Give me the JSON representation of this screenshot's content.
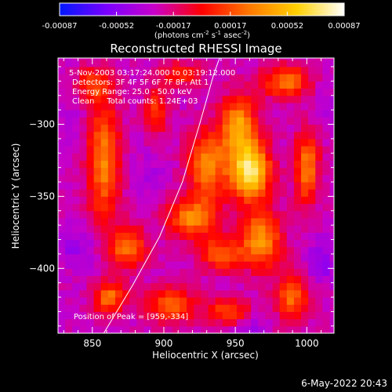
{
  "chart_data": {
    "type": "heatmap",
    "title": "Reconstructed RHESSI Image",
    "xlabel": "Heliocentric X (arcsec)",
    "ylabel": "Heliocentric Y (arcsec)",
    "xlim": [
      826,
      1019
    ],
    "ylim": [
      -445,
      -254
    ],
    "x_ticks": [
      850,
      900,
      950,
      1000
    ],
    "y_ticks": [
      -300,
      -350,
      -400
    ],
    "colorbar": {
      "range": [
        -0.00087,
        0.00087
      ],
      "ticks": [
        "-0.00087",
        "-0.00052",
        "-0.00017",
        "0.00017",
        "0.00052",
        "0.00087"
      ],
      "unit_prefix": "(photons cm",
      "unit_exp1": "-2",
      "unit_mid": " s",
      "unit_exp2": "-1",
      "unit_mid2": " asec",
      "unit_exp3": "-2",
      "unit_suffix": ")",
      "colormap": [
        "#0018ff",
        "#7a00ff",
        "#c800c8",
        "#ff0000",
        "#ff7800",
        "#ffd000",
        "#ffffff"
      ]
    },
    "annotations": [
      "5-Nov-2003 03:17:24.000 to 03:19:12.000",
      "Detectors: 3F 4F 5F 6F 7F 8F, Att 1",
      "Energy Range: 25.0 - 50.0 keV",
      "Clean     Total counts: 1.24E+03"
    ],
    "peak_label": "Position of Peak = [959,-334]",
    "peak": [
      959,
      -334
    ],
    "limb_line": [
      [
        858,
        -445
      ],
      [
        878,
        -412
      ],
      [
        897,
        -378
      ],
      [
        913,
        -340
      ],
      [
        925,
        -300
      ],
      [
        935,
        -265
      ],
      [
        939,
        -254
      ]
    ],
    "blobs": [
      {
        "x": 960,
        "y": -332,
        "sx": 10,
        "sy": 14,
        "v": 1.0
      },
      {
        "x": 952,
        "y": -300,
        "sx": 9,
        "sy": 14,
        "v": 0.62
      },
      {
        "x": 930,
        "y": -328,
        "sx": 9,
        "sy": 16,
        "v": 0.58
      },
      {
        "x": 920,
        "y": -365,
        "sx": 12,
        "sy": 10,
        "v": 0.55
      },
      {
        "x": 968,
        "y": -380,
        "sx": 10,
        "sy": 14,
        "v": 0.62
      },
      {
        "x": 940,
        "y": -390,
        "sx": 10,
        "sy": 8,
        "v": 0.45
      },
      {
        "x": 1000,
        "y": -330,
        "sx": 6,
        "sy": 18,
        "v": 0.52
      },
      {
        "x": 985,
        "y": -270,
        "sx": 12,
        "sy": 8,
        "v": 0.48
      },
      {
        "x": 858,
        "y": -325,
        "sx": 8,
        "sy": 30,
        "v": 0.55
      },
      {
        "x": 875,
        "y": -385,
        "sx": 9,
        "sy": 10,
        "v": 0.5
      },
      {
        "x": 862,
        "y": -420,
        "sx": 8,
        "sy": 8,
        "v": 0.48
      },
      {
        "x": 905,
        "y": -425,
        "sx": 12,
        "sy": 8,
        "v": 0.48
      },
      {
        "x": 945,
        "y": -430,
        "sx": 10,
        "sy": 6,
        "v": 0.4
      },
      {
        "x": 990,
        "y": -420,
        "sx": 8,
        "sy": 12,
        "v": 0.45
      },
      {
        "x": 895,
        "y": -290,
        "sx": 6,
        "sy": 12,
        "v": 0.3
      },
      {
        "x": 850,
        "y": -272,
        "sx": 8,
        "sy": 8,
        "v": 0.28
      },
      {
        "x": 912,
        "y": -265,
        "sx": 10,
        "sy": 6,
        "v": 0.25
      },
      {
        "x": 835,
        "y": -300,
        "sx": 8,
        "sy": 12,
        "v": -0.25
      },
      {
        "x": 840,
        "y": -385,
        "sx": 10,
        "sy": 10,
        "v": -0.35
      },
      {
        "x": 890,
        "y": -335,
        "sx": 8,
        "sy": 14,
        "v": -0.25
      },
      {
        "x": 1010,
        "y": -395,
        "sx": 8,
        "sy": 10,
        "v": -0.4
      },
      {
        "x": 960,
        "y": -440,
        "sx": 8,
        "sy": 6,
        "v": -0.3
      },
      {
        "x": 1012,
        "y": -285,
        "sx": 6,
        "sy": 10,
        "v": -0.25
      }
    ]
  },
  "footer": {
    "date": "6-May-2022 20:43"
  }
}
